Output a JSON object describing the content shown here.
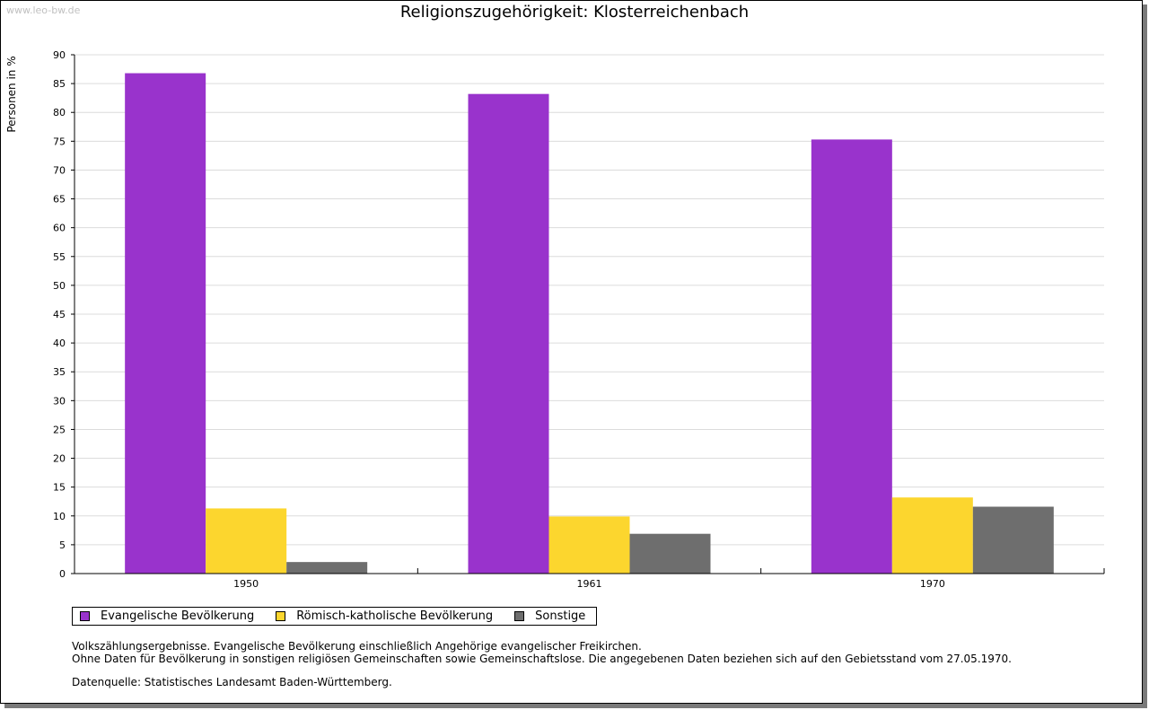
{
  "watermark": "www.leo-bw.de",
  "chart_data": {
    "type": "bar",
    "title": "Religionszugehörigkeit: Klosterreichenbach",
    "xlabel": "",
    "ylabel": "Personen in %",
    "ylim": [
      0,
      90
    ],
    "ytick_step": 5,
    "grid": true,
    "categories": [
      "1950",
      "1961",
      "1970"
    ],
    "series": [
      {
        "name": "Evangelische Bevölkerung",
        "color": "#9933cc",
        "values": [
          86.8,
          83.2,
          75.3
        ]
      },
      {
        "name": "Römisch-katholische Bevölkerung",
        "color": "#fcd62e",
        "values": [
          11.3,
          9.9,
          13.2
        ]
      },
      {
        "name": "Sonstige",
        "color": "#6e6e6e",
        "values": [
          2.0,
          6.9,
          11.6
        ]
      }
    ],
    "legend_position": "bottom-left"
  },
  "notes": {
    "line1": "Volkszählungsergebnisse. Evangelische Bevölkerung einschließlich Angehörige evangelischer Freikirchen.",
    "line2": "Ohne Daten für Bevölkerung in sonstigen religiösen Gemeinschaften sowie Gemeinschaftslose. Die angegebenen Daten beziehen sich auf den Gebietsstand vom 27.05.1970.",
    "source": "Datenquelle: Statistisches Landesamt Baden-Württemberg."
  }
}
